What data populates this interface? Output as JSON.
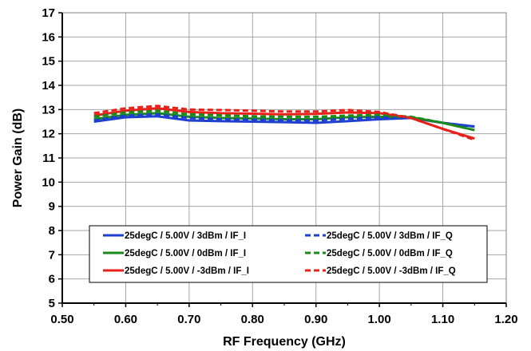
{
  "chart_data": {
    "type": "line",
    "xlabel": "RF Frequency (GHz)",
    "ylabel": "Power Gain (dB)",
    "xlim": [
      0.5,
      1.2
    ],
    "ylim": [
      5,
      17
    ],
    "x_ticks": [
      "0.50",
      "0.60",
      "0.70",
      "0.80",
      "0.90",
      "1.00",
      "1.10",
      "1.20"
    ],
    "y_ticks": [
      "5",
      "6",
      "7",
      "8",
      "9",
      "10",
      "11",
      "12",
      "13",
      "14",
      "15",
      "16",
      "17"
    ],
    "grid": true,
    "legend": "bottom-center",
    "x": [
      0.55,
      0.6,
      0.65,
      0.7,
      0.75,
      0.8,
      0.85,
      0.9,
      0.95,
      1.0,
      1.05,
      1.1,
      1.15
    ],
    "series": [
      {
        "name": "25degC /  5.00V /  3dBm /  IF_I",
        "color": "#1f3fcf",
        "dash": "solid",
        "values": [
          12.5,
          12.68,
          12.72,
          12.55,
          12.52,
          12.5,
          12.48,
          12.45,
          12.52,
          12.6,
          12.65,
          12.45,
          12.3
        ]
      },
      {
        "name": "25degC /  5.00V /  0dBm /  IF_I",
        "color": "#1a8a1a",
        "dash": "solid",
        "values": [
          12.6,
          12.78,
          12.85,
          12.7,
          12.65,
          12.63,
          12.6,
          12.6,
          12.68,
          12.7,
          12.68,
          12.45,
          12.15
        ]
      },
      {
        "name": "25degC /  5.00V /  -3dBm /  IF_I",
        "color": "#e8201a",
        "dash": "solid",
        "values": [
          12.75,
          12.95,
          13.05,
          12.9,
          12.85,
          12.83,
          12.8,
          12.82,
          12.88,
          12.85,
          12.65,
          12.2,
          11.8
        ]
      },
      {
        "name": "25degC /  5.00V /  3dBm /  IF_Q",
        "color": "#1f3fcf",
        "dash": "dashed",
        "values": [
          12.55,
          12.75,
          12.8,
          12.65,
          12.6,
          12.58,
          12.56,
          12.55,
          12.62,
          12.68,
          12.68,
          12.45,
          12.3
        ]
      },
      {
        "name": "25degC /  5.00V /  0dBm /  IF_Q",
        "color": "#1a8a1a",
        "dash": "dashed",
        "values": [
          12.7,
          12.88,
          12.95,
          12.8,
          12.76,
          12.72,
          12.7,
          12.7,
          12.75,
          12.78,
          12.7,
          12.45,
          12.15
        ]
      },
      {
        "name": "25degC /  5.00V /  -3dBm /  IF_Q",
        "color": "#e8201a",
        "dash": "dashed",
        "values": [
          12.85,
          13.05,
          13.15,
          13.0,
          12.98,
          12.95,
          12.92,
          12.92,
          12.98,
          12.9,
          12.65,
          12.2,
          11.75
        ]
      }
    ]
  }
}
